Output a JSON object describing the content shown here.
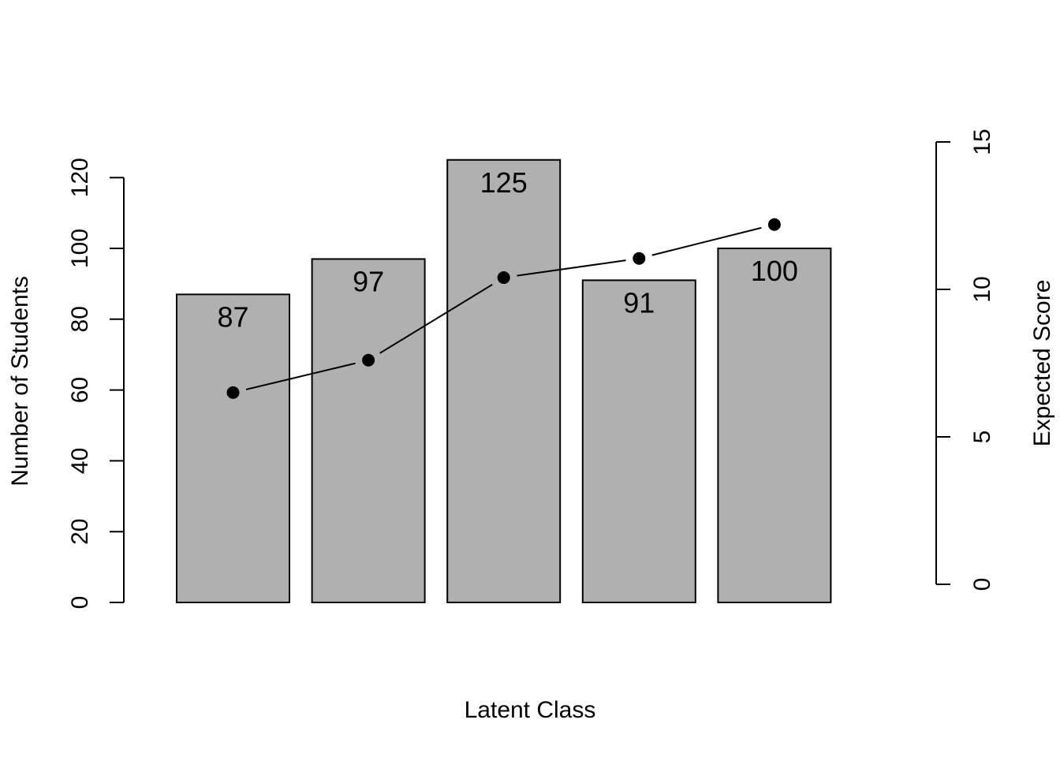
{
  "chart_data": {
    "type": "bar",
    "categories": [
      "",
      "",
      "",
      "",
      ""
    ],
    "title": "",
    "xlabel": "Latent Class",
    "ylabel": "Number of Students",
    "ylim": [
      0,
      125
    ],
    "yticks": [
      0,
      20,
      40,
      60,
      80,
      100,
      120
    ],
    "y2label": "Expected Score",
    "y2lim": [
      0,
      15
    ],
    "y2ticks": [
      0,
      5,
      10,
      15
    ],
    "grid": false,
    "legend": "none",
    "series": [
      {
        "type": "bar",
        "axis": "left",
        "values": [
          87,
          97,
          125,
          91,
          100
        ],
        "data_labels": [
          "87",
          "97",
          "125",
          "91",
          "100"
        ],
        "color": "#b0b0b0"
      },
      {
        "type": "line",
        "axis": "right",
        "values": [
          6.5,
          7.6,
          10.4,
          11.05,
          12.2
        ],
        "color": "#000000",
        "marker": "filled-circle"
      }
    ]
  }
}
